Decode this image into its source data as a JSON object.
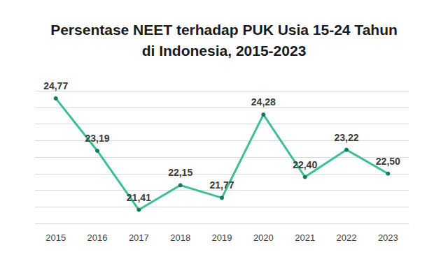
{
  "chart_data": {
    "type": "line",
    "title": "Persentase NEET terhadap PUK Usia 15-24 Tahun\ndi Indonesia, 2015-2023",
    "categories": [
      "2015",
      "2016",
      "2017",
      "2018",
      "2019",
      "2020",
      "2021",
      "2022",
      "2023"
    ],
    "values": [
      24.77,
      23.19,
      21.41,
      22.15,
      21.77,
      24.28,
      22.4,
      23.22,
      22.5
    ],
    "value_labels": [
      "24,77",
      "23,19",
      "21,41",
      "22,15",
      "21,77",
      "24,28",
      "22,40",
      "23,22",
      "22,50"
    ],
    "color": "#3dbf95",
    "marker": "circle",
    "ylim": [
      21,
      25
    ],
    "yticks": [
      21,
      21.5,
      22,
      22.5,
      23,
      23.5,
      24,
      24.5,
      25
    ],
    "grid": true,
    "data_labels": true,
    "tick_labels": "x"
  }
}
